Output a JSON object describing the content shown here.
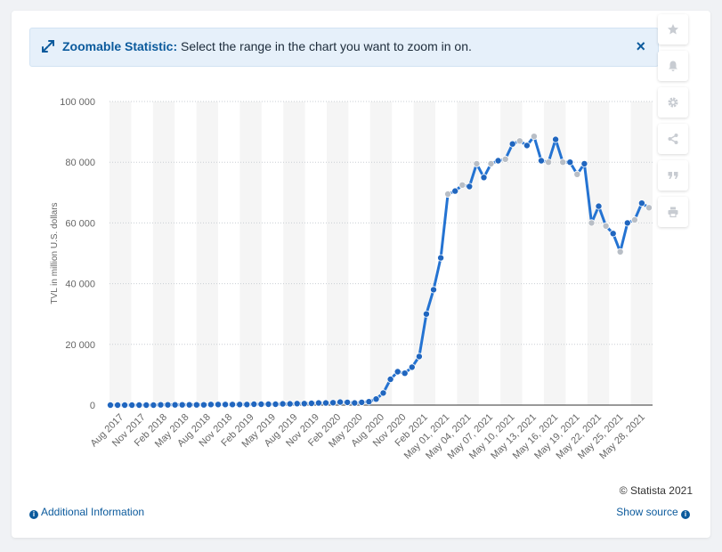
{
  "banner": {
    "title": "Zoomable Statistic:",
    "text": " Select the range in the chart you want to zoom in on.",
    "close_label": "×"
  },
  "toolbar": [
    "star-icon",
    "bell-icon",
    "gear-icon",
    "share-icon",
    "quote-icon",
    "print-icon"
  ],
  "footer": {
    "copyright": "© Statista 2021",
    "additional_info": "Additional Information",
    "show_source": "Show source"
  },
  "colors": {
    "line": "#2473d2",
    "point_dark": "#2066bf",
    "point_light": "#b8bec6",
    "band": "#f5f5f5"
  },
  "chart_data": {
    "type": "line",
    "title": "",
    "xlabel": "",
    "ylabel": "TVL in million U.S. dollars",
    "ylim": [
      0,
      100000
    ],
    "yticks": [
      0,
      20000,
      40000,
      60000,
      80000,
      100000
    ],
    "ytick_labels": [
      "0",
      "20 000",
      "40 000",
      "60 000",
      "80 000",
      "100 000"
    ],
    "x_tick_labels": [
      "Aug 2017",
      "Nov 2017",
      "Feb 2018",
      "May 2018",
      "Aug 2018",
      "Nov 2018",
      "Feb 2019",
      "May 2019",
      "Aug 2019",
      "Nov 2019",
      "Feb 2020",
      "May 2020",
      "Aug 2020",
      "Nov 2020",
      "Feb 2021",
      "May 01, 2021",
      "May 04, 2021",
      "May 07, 2021",
      "May 10, 2021",
      "May 13, 2021",
      "May 16, 2021",
      "May 19, 2021",
      "May 22, 2021",
      "May 25, 2021",
      "May 28, 2021"
    ],
    "grid": true,
    "legend": "none",
    "series": [
      {
        "values": [
          0,
          0,
          0,
          0,
          0,
          0,
          0,
          100,
          100,
          100,
          100,
          100,
          100,
          100,
          200,
          200,
          200,
          200,
          200,
          200,
          300,
          300,
          300,
          300,
          400,
          400,
          500,
          500,
          600,
          700,
          700,
          800,
          1000,
          900,
          700,
          900,
          1100,
          2000,
          4000,
          8500,
          11000,
          10500,
          12500,
          16000,
          30000,
          38000,
          48500,
          69500,
          70500,
          72500,
          72000,
          79500,
          75000,
          79500,
          80500,
          81000,
          86000,
          87000,
          85500,
          88500,
          80500,
          80000,
          87500,
          80000,
          80000,
          76000,
          79500,
          60000,
          65500,
          59000,
          56500,
          50500,
          60000,
          61000,
          66500,
          65000
        ]
      }
    ]
  }
}
